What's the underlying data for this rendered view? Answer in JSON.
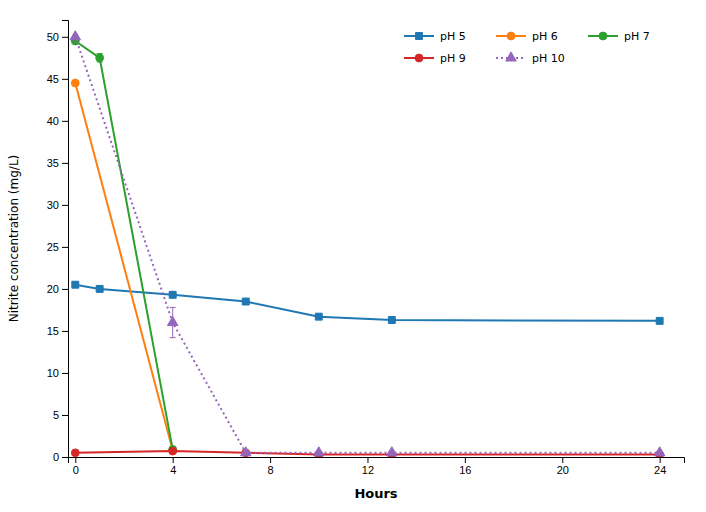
{
  "chart_data": {
    "type": "line",
    "xlabel": "Hours",
    "ylabel": "Nitrite concentration (mg/L)",
    "xlim": [
      -0.3,
      25
    ],
    "ylim": [
      0,
      52
    ],
    "xticks": [
      0,
      4,
      8,
      12,
      16,
      20,
      24
    ],
    "yticks": [
      0,
      5,
      10,
      15,
      20,
      25,
      30,
      35,
      40,
      45,
      50
    ],
    "grid": false,
    "legend": "upper right",
    "series": [
      {
        "name": "pH 5",
        "marker": "square",
        "line_style": "solid",
        "x": [
          0,
          1,
          4,
          7,
          10,
          13,
          24
        ],
        "values": [
          20.5,
          20.0,
          19.3,
          18.5,
          16.7,
          16.3,
          16.2
        ],
        "yerr": [
          0.3,
          0.3,
          0.3,
          0.0,
          0.0,
          0.0,
          0.0
        ]
      },
      {
        "name": "pH 6",
        "marker": "circle",
        "line_style": "solid",
        "x": [
          0,
          4
        ],
        "values": [
          44.5,
          0.8
        ],
        "yerr": [
          0.0,
          0.0
        ]
      },
      {
        "name": "pH 7",
        "marker": "circle",
        "line_style": "solid",
        "x": [
          0,
          1,
          4
        ],
        "values": [
          49.5,
          47.5,
          0.9
        ],
        "yerr": [
          0.0,
          0.5,
          0.0
        ]
      },
      {
        "name": "pH 9",
        "marker": "circle",
        "line_style": "solid",
        "x": [
          0,
          4,
          7,
          10,
          13,
          24
        ],
        "values": [
          0.5,
          0.7,
          0.5,
          0.3,
          0.3,
          0.3
        ],
        "yerr": [
          0.0,
          0.2,
          0.0,
          0.0,
          0.0,
          0.0
        ]
      },
      {
        "name": "pH 10",
        "marker": "triangle-up",
        "line_style": "dotted",
        "x": [
          0,
          4,
          7,
          10,
          13,
          24
        ],
        "values": [
          50.0,
          16.0,
          0.5,
          0.5,
          0.5,
          0.5
        ],
        "yerr": [
          0.0,
          1.8,
          0.0,
          0.0,
          0.0,
          0.0
        ]
      }
    ]
  }
}
